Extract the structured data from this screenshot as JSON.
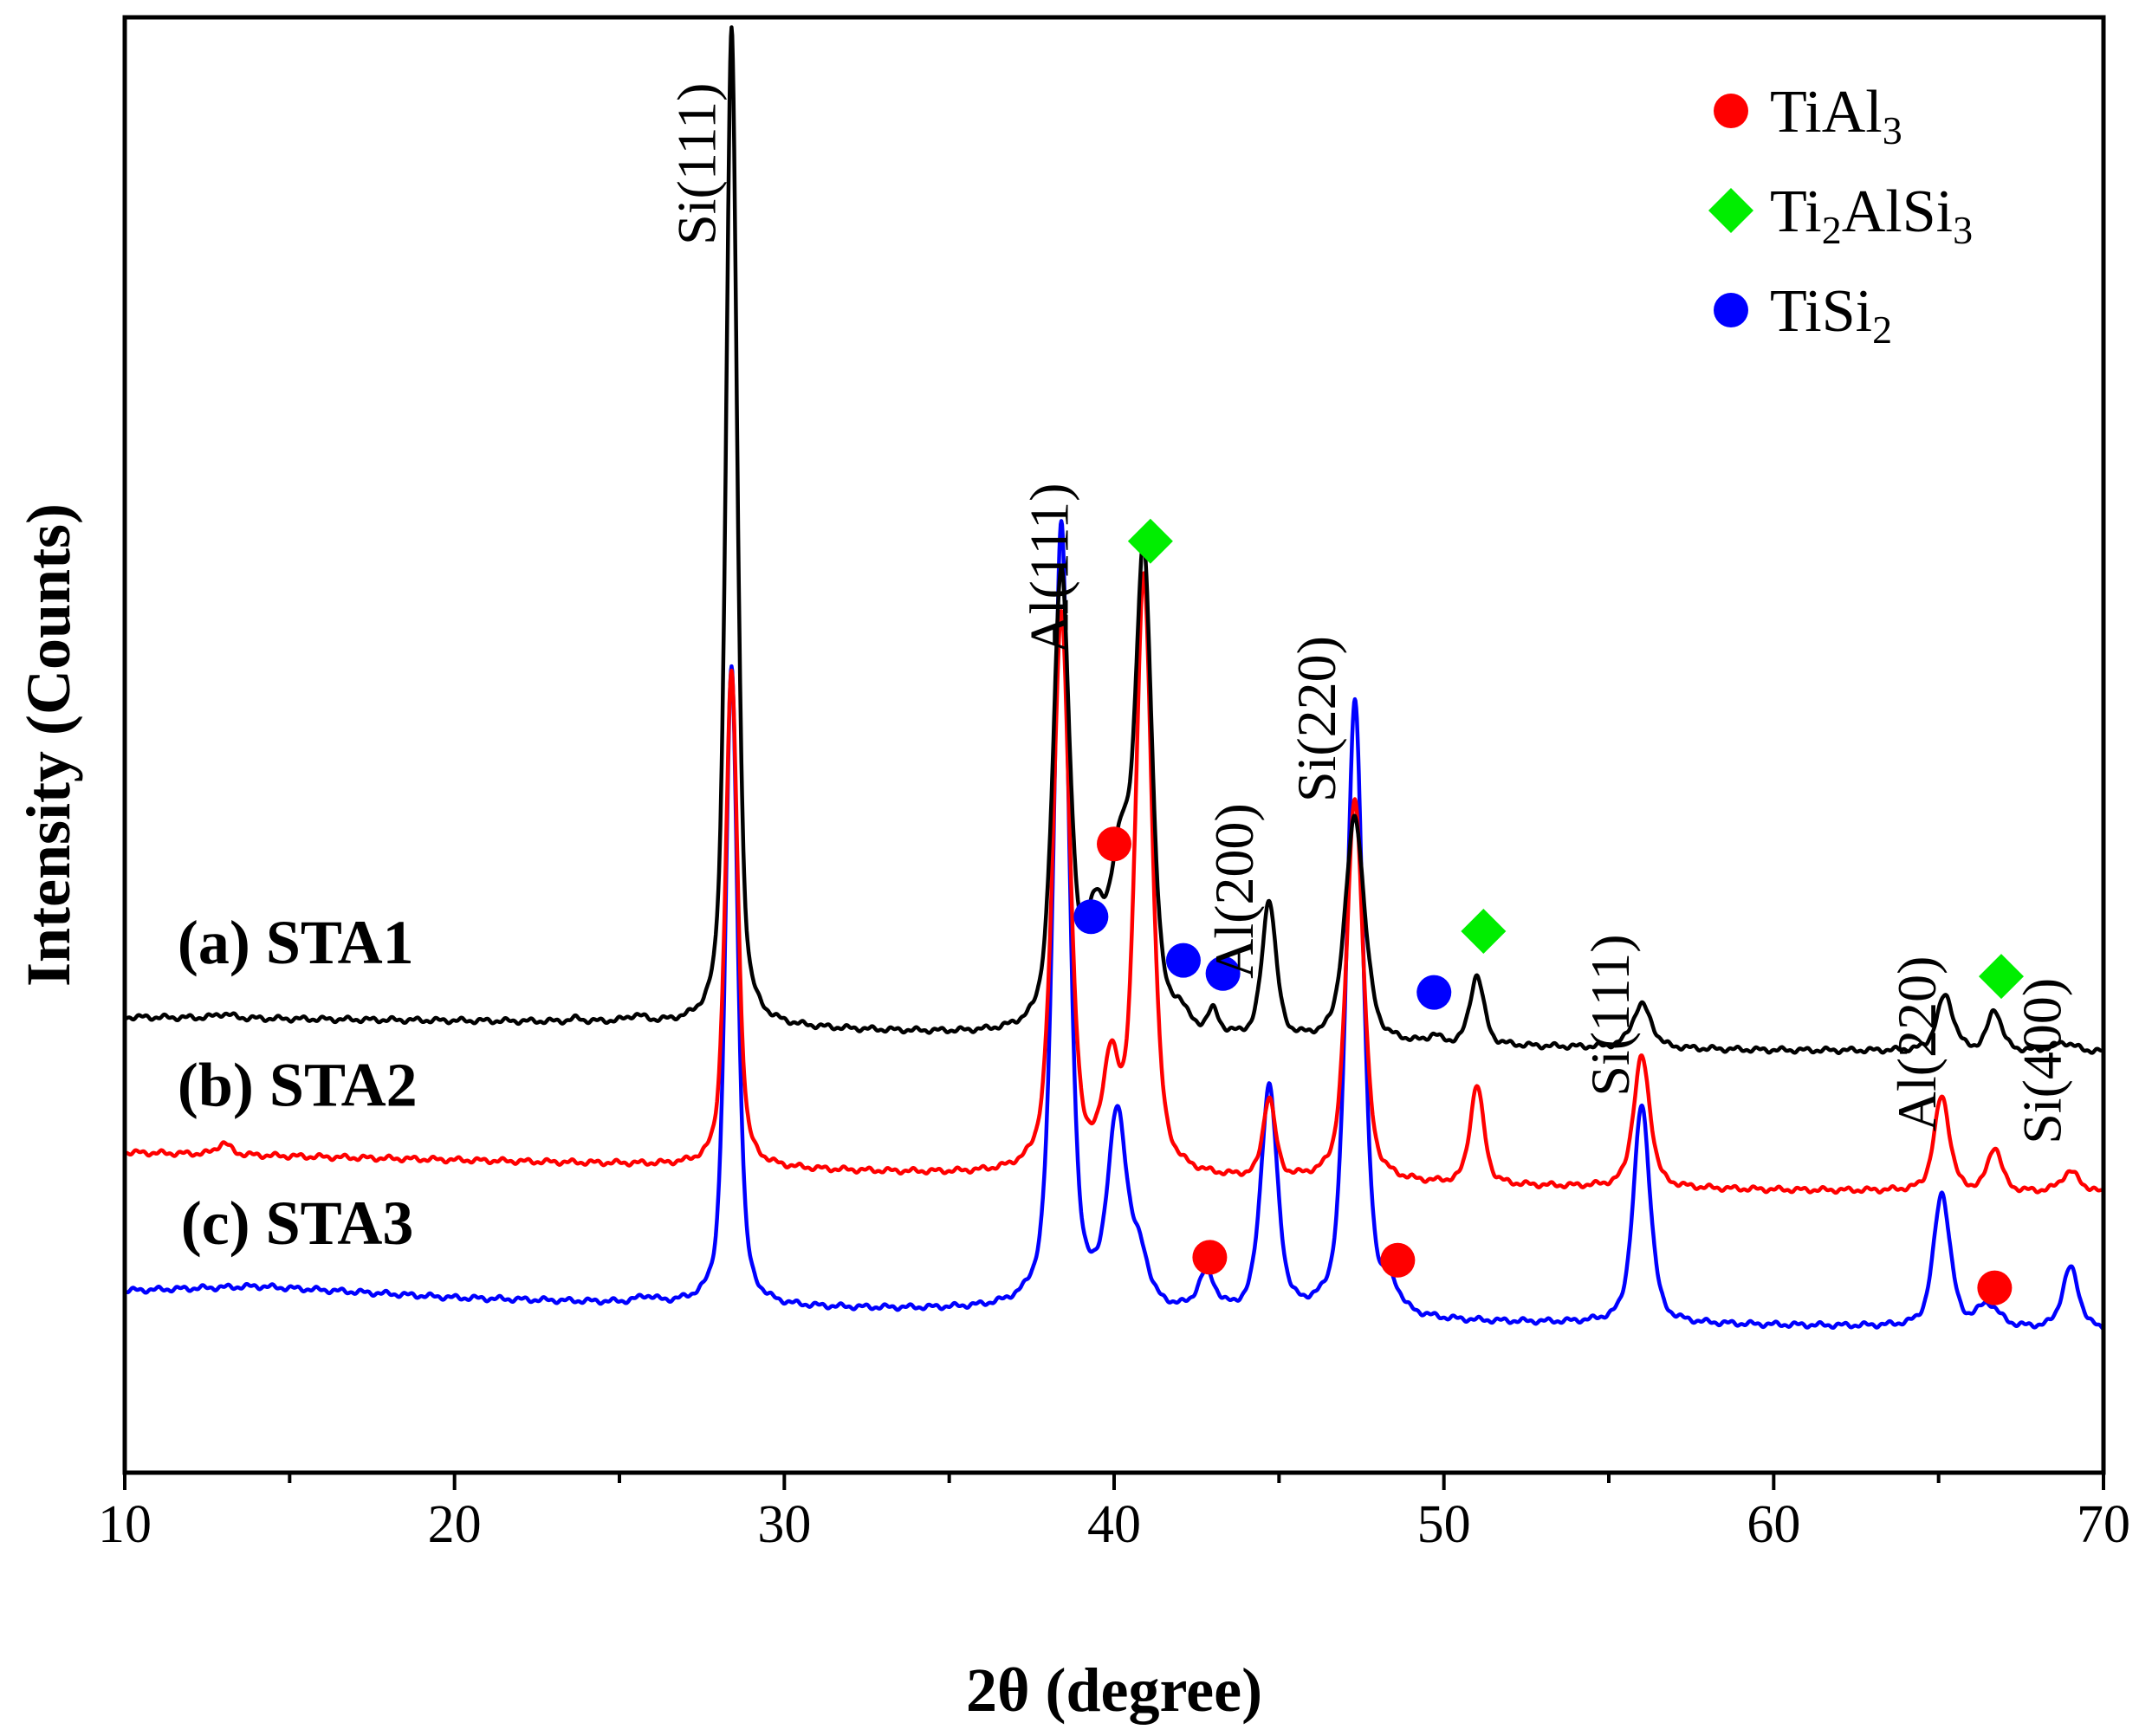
{
  "chart_data": {
    "type": "line",
    "title": "",
    "xlabel": "2θ (degree)",
    "ylabel": "Intensity (Counts)",
    "xlim": [
      10,
      70
    ],
    "ylim": [
      0,
      1000
    ],
    "xticks": [
      10,
      20,
      30,
      40,
      50,
      60,
      70
    ],
    "xtick_labels": [
      "10",
      "20",
      "30",
      "40",
      "50",
      "60",
      "70"
    ],
    "colors": {
      "red": "#ff0000",
      "green": "#00ee00",
      "blue": "#0000ff",
      "black": "#000000"
    },
    "series": [
      {
        "name": "(a) STA1",
        "color": "#000000",
        "baseline": [
          [
            10,
            313
          ],
          [
            25,
            309
          ],
          [
            30,
            305
          ],
          [
            38,
            299
          ],
          [
            50,
            293
          ],
          [
            60,
            290
          ],
          [
            70,
            289
          ]
        ],
        "peaks": [
          [
            13.0,
            3,
            0.3
          ],
          [
            23.7,
            2,
            0.2
          ],
          [
            25.5,
            4,
            0.3
          ],
          [
            28.4,
            685,
            0.2
          ],
          [
            38.4,
            315,
            0.3
          ],
          [
            39.4,
            65,
            0.35
          ],
          [
            40.2,
            110,
            0.4
          ],
          [
            40.9,
            315,
            0.3
          ],
          [
            42.0,
            12,
            0.25
          ],
          [
            43.0,
            15,
            0.2
          ],
          [
            44.7,
            95,
            0.25
          ],
          [
            47.3,
            155,
            0.35
          ],
          [
            49.7,
            5,
            0.2
          ],
          [
            51.0,
            48,
            0.25
          ],
          [
            56.0,
            30,
            0.35
          ],
          [
            65.2,
            38,
            0.3
          ],
          [
            66.7,
            28,
            0.25
          ],
          [
            68.8,
            6,
            0.4
          ]
        ]
      },
      {
        "name": "(b) STA2",
        "color": "#000000",
        "baseline": [
          [
            10,
            220
          ],
          [
            25,
            212
          ],
          [
            30,
            208
          ],
          [
            38,
            203
          ],
          [
            50,
            197
          ],
          [
            60,
            194
          ],
          [
            70,
            192
          ]
        ],
        "peaks": [
          [
            13.0,
            8,
            0.25
          ],
          [
            28.4,
            340,
            0.22
          ],
          [
            38.4,
            385,
            0.3
          ],
          [
            39.9,
            68,
            0.28
          ],
          [
            40.9,
            410,
            0.3
          ],
          [
            44.7,
            55,
            0.22
          ],
          [
            47.3,
            265,
            0.3
          ],
          [
            51.0,
            68,
            0.25
          ],
          [
            56.0,
            90,
            0.3
          ],
          [
            65.1,
            65,
            0.28
          ],
          [
            66.7,
            30,
            0.25
          ],
          [
            69.0,
            14,
            0.35
          ]
        ]
      },
      {
        "name": "(c) STA3",
        "color": "#000000",
        "baseline": [
          [
            10,
            125
          ],
          [
            14,
            128
          ],
          [
            20,
            120
          ],
          [
            30,
            113
          ],
          [
            40,
            110
          ],
          [
            50,
            103
          ],
          [
            60,
            101
          ],
          [
            70,
            98
          ]
        ],
        "peaks": [
          [
            25.8,
            4,
            0.3
          ],
          [
            28.4,
            440,
            0.22
          ],
          [
            38.4,
            540,
            0.28
          ],
          [
            40.1,
            130,
            0.35
          ],
          [
            40.8,
            30,
            0.3
          ],
          [
            42.8,
            25,
            0.3
          ],
          [
            44.7,
            155,
            0.3
          ],
          [
            47.3,
            425,
            0.3
          ],
          [
            48.4,
            15,
            0.3
          ],
          [
            56.0,
            150,
            0.3
          ],
          [
            65.1,
            92,
            0.3
          ],
          [
            66.5,
            15,
            0.4
          ],
          [
            69.0,
            42,
            0.3
          ]
        ]
      }
    ],
    "series_colors": [
      "#000000",
      "#ff0000",
      "#0000ff"
    ],
    "peak_labels": [
      {
        "text": "Si(111)",
        "x": 27.9,
        "y": 955
      },
      {
        "text": "Al(111)",
        "x": 38.6,
        "y": 680
      },
      {
        "text": "Al(200)",
        "x": 44.2,
        "y": 460
      },
      {
        "text": "Si(220)",
        "x": 46.7,
        "y": 575
      },
      {
        "text": "Si(111)",
        "x": 55.6,
        "y": 370
      },
      {
        "text": "Al(220)",
        "x": 64.9,
        "y": 355
      },
      {
        "text": "Si(400)",
        "x": 68.7,
        "y": 340
      }
    ],
    "sample_labels": [
      {
        "text": "(a) STA1",
        "x": 11.6,
        "y": 350
      },
      {
        "text": "(b) STA2",
        "x": 11.6,
        "y": 252
      },
      {
        "text": "(c) STA3",
        "x": 11.7,
        "y": 157
      }
    ],
    "legend": {
      "position": "top-right",
      "entries": [
        {
          "marker": "circle",
          "color": "#ff0000",
          "label": "TiAl",
          "sub": "3",
          "after": ""
        },
        {
          "marker": "diamond",
          "color": "#00ee00",
          "label": "Ti",
          "sub": "2",
          "after": "AlSi",
          "sub2": "3"
        },
        {
          "marker": "circle",
          "color": "#0000ff",
          "label": "TiSi",
          "sub": "2",
          "after": ""
        }
      ]
    },
    "markers": [
      {
        "shape": "diamond",
        "color": "#00ee00",
        "x": 41.1,
        "y": 640
      },
      {
        "shape": "circle",
        "color": "#ff0000",
        "x": 40.0,
        "y": 432
      },
      {
        "shape": "circle",
        "color": "#0000ff",
        "x": 39.3,
        "y": 382
      },
      {
        "shape": "circle",
        "color": "#0000ff",
        "x": 42.1,
        "y": 352
      },
      {
        "shape": "circle",
        "color": "#0000ff",
        "x": 43.3,
        "y": 343
      },
      {
        "shape": "circle",
        "color": "#0000ff",
        "x": 49.7,
        "y": 330
      },
      {
        "shape": "diamond",
        "color": "#00ee00",
        "x": 51.2,
        "y": 372
      },
      {
        "shape": "diamond",
        "color": "#00ee00",
        "x": 66.9,
        "y": 341
      },
      {
        "shape": "circle",
        "color": "#ff0000",
        "x": 42.9,
        "y": 148
      },
      {
        "shape": "circle",
        "color": "#ff0000",
        "x": 48.6,
        "y": 146
      },
      {
        "shape": "circle",
        "color": "#ff0000",
        "x": 66.7,
        "y": 127
      }
    ]
  }
}
